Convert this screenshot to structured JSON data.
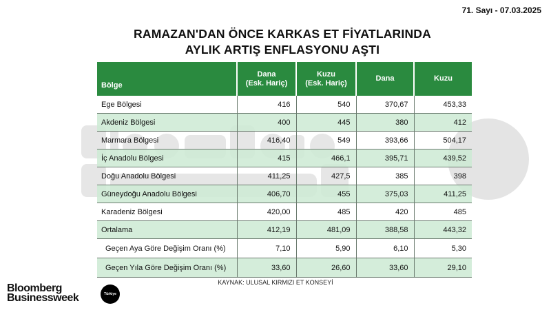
{
  "issue": "71. Sayı - 07.03.2025",
  "title_line1": "RAMAZAN'DAN ÖNCE KARKAS ET FİYATLARINDA",
  "title_line2": "AYLIK ARTIŞ ENFLASYONU AŞTI",
  "watermark": {
    "line1": "Bloomberg",
    "line2": "Businessweek",
    "badge": "Türkiye"
  },
  "table": {
    "headers": [
      "Bölge",
      [
        "Dana",
        "(Esk. Hariç)"
      ],
      [
        "Kuzu",
        "(Esk. Hariç)"
      ],
      "Dana",
      "Kuzu"
    ],
    "rows": [
      [
        "Ege Bölgesi",
        "416",
        "540",
        "370,67",
        "453,33"
      ],
      [
        "Akdeniz Bölgesi",
        "400",
        "445",
        "380",
        "412"
      ],
      [
        "Marmara Bölgesi",
        "416,40",
        "549",
        "393,66",
        "504,17"
      ],
      [
        "İç Anadolu Bölgesi",
        "415",
        "466,1",
        "395,71",
        "439,52"
      ],
      [
        "Doğu Anadolu Bölgesi",
        "411,25",
        "427,5",
        "385",
        "398"
      ],
      [
        "Güneydoğu Anadolu Bölgesi",
        "406,70",
        "455",
        "375,03",
        "411,25"
      ],
      [
        "Karadeniz Bölgesi",
        "420,00",
        "485",
        "420",
        "485"
      ],
      [
        "Ortalama",
        "412,19",
        "481,09",
        "388,58",
        "443,32"
      ],
      [
        "Geçen Aya Göre Değişim Oranı (%)",
        "7,10",
        "5,90",
        "6,10",
        "5,30"
      ],
      [
        "Geçen Yıla Göre Değişim Oranı (%)",
        "33,60",
        "26,60",
        "33,60",
        "29,10"
      ]
    ]
  },
  "source": "KAYNAK: ULUSAL KIRMIZI ET KONSEYİ",
  "logo": {
    "line1": "Bloomberg",
    "line2": "Businessweek",
    "badge": "Türkiye"
  },
  "colors": {
    "header_green": "#2a8a3f",
    "row_alt": "#cdead4"
  }
}
